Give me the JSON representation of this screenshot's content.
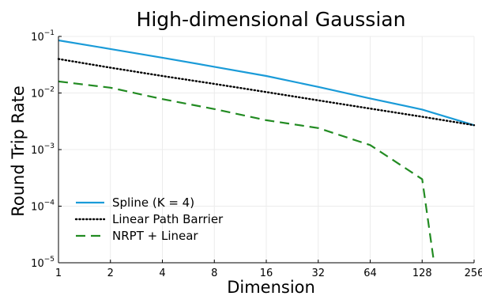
{
  "chart_data": {
    "type": "line",
    "title": "High-dimensional Gaussian",
    "xlabel": "Dimension",
    "ylabel": "Round Trip Rate",
    "xscale": "log2",
    "yscale": "log10",
    "xlim": [
      1,
      256
    ],
    "ylim": [
      1e-05,
      0.1
    ],
    "x_ticks": [
      "1",
      "2",
      "4",
      "8",
      "16",
      "32",
      "64",
      "128",
      "256"
    ],
    "y_ticks": [
      {
        "base": "10",
        "exp": "−1"
      },
      {
        "base": "10",
        "exp": "−2"
      },
      {
        "base": "10",
        "exp": "−3"
      },
      {
        "base": "10",
        "exp": "−4"
      },
      {
        "base": "10",
        "exp": "−5"
      }
    ],
    "grid": true,
    "legend_position": "bottom-left",
    "series": [
      {
        "name": "Spline (K = 4)",
        "color": "#1a9bd8",
        "dash": "solid",
        "x": [
          1,
          2,
          4,
          8,
          16,
          32,
          64,
          128,
          256
        ],
        "y": [
          0.085,
          0.06,
          0.042,
          0.029,
          0.02,
          0.0128,
          0.008,
          0.0051,
          0.0027
        ]
      },
      {
        "name": "Linear Path Barrier",
        "color": "#000000",
        "dash": "dotted",
        "x": [
          1,
          2,
          4,
          8,
          16,
          32,
          64,
          128,
          256
        ],
        "y": [
          0.04,
          0.028,
          0.02,
          0.0145,
          0.0104,
          0.0074,
          0.0053,
          0.0038,
          0.0027
        ]
      },
      {
        "name": "NRPT + Linear",
        "color": "#228b22",
        "dash": "dashed",
        "x": [
          1,
          2,
          4,
          8,
          16,
          32,
          64,
          128,
          150
        ],
        "y": [
          0.016,
          0.0124,
          0.0078,
          0.0052,
          0.0033,
          0.0024,
          0.0012,
          0.0003,
          1e-05
        ]
      }
    ]
  }
}
